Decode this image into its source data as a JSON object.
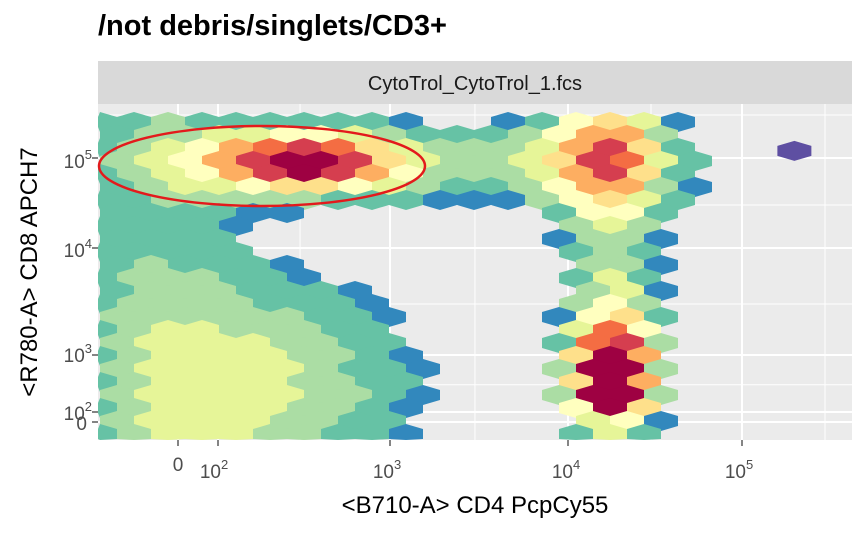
{
  "title": "/not debris/singlets/CD3+",
  "chart_data": {
    "type": "heatmap",
    "title": "/not debris/singlets/CD3+",
    "facet_label": "CytoTrol_CytoTrol_1.fcs",
    "xlabel": "<B710-A> CD4 PcpCy55",
    "ylabel": "<R780-A> CD8 APCH7",
    "x_ticks": [
      {
        "base": "0",
        "exp": ""
      },
      {
        "base": "10",
        "exp": "2"
      },
      {
        "base": "10",
        "exp": "3"
      },
      {
        "base": "10",
        "exp": "4"
      },
      {
        "base": "10",
        "exp": "5"
      }
    ],
    "y_ticks": [
      {
        "base": "0",
        "exp": ""
      },
      {
        "base": "10",
        "exp": "2"
      },
      {
        "base": "10",
        "exp": "3"
      },
      {
        "base": "10",
        "exp": "4"
      },
      {
        "base": "10",
        "exp": "5"
      }
    ],
    "scale": "biexponential",
    "palette": [
      "#5e4fa2",
      "#3288bd",
      "#66c2a5",
      "#abdda4",
      "#e6f598",
      "#ffffbf",
      "#fee08b",
      "#fdae61",
      "#f46d43",
      "#d53e4f",
      "#9e0142"
    ],
    "gate": {
      "shape": "ellipse",
      "color": "#e31a1c",
      "x_range": [
        -300,
        1500
      ],
      "y_range": [
        50000,
        150000
      ]
    },
    "populations": [
      {
        "x": 300,
        "y": 90000,
        "density": 0.85
      },
      {
        "x": 18000,
        "y": 400,
        "density": 1.0
      },
      {
        "x": 200,
        "y": 300,
        "density": 0.35
      },
      {
        "x": 15000,
        "y": 90000,
        "density": 0.45
      }
    ]
  }
}
